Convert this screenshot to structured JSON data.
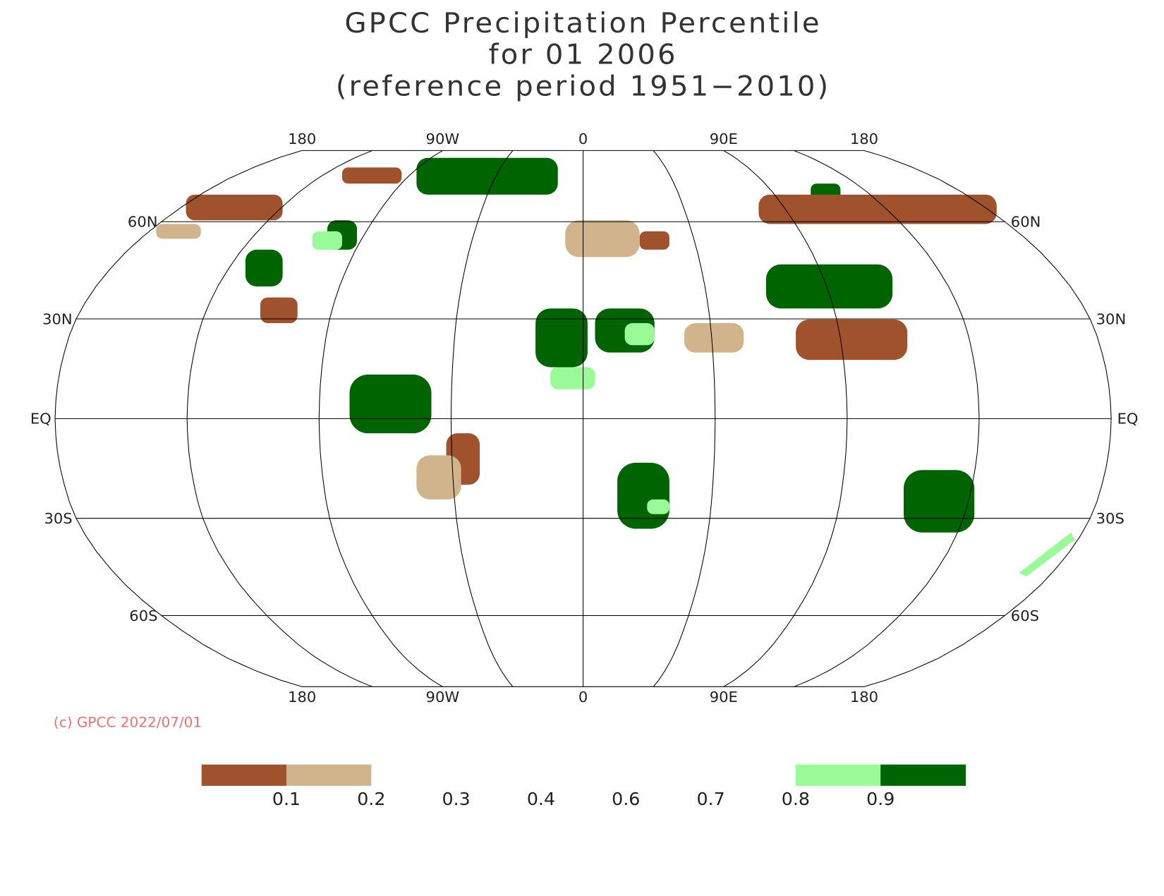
{
  "chart_data": {
    "type": "map",
    "title": [
      "GPCC Precipitation Percentile",
      "for 01 2006",
      "(reference period 1951−2010)"
    ],
    "lon_labels": [
      "180",
      "90W",
      "0",
      "90E",
      "180"
    ],
    "lat_labels": [
      "60N",
      "30N",
      "EQ",
      "30S",
      "60S"
    ],
    "credit": "(c) GPCC 2022/07/01",
    "legend": {
      "colors": [
        "#a0522d",
        "#d2b48c",
        "#ffffff",
        "#ffffff",
        "#ffffff",
        "#ffffff",
        "#ffffff",
        "#98fb98",
        "#006400"
      ],
      "labels": [
        0.1,
        0.2,
        0.3,
        0.4,
        0.6,
        0.7,
        0.8,
        0.9
      ]
    }
  }
}
